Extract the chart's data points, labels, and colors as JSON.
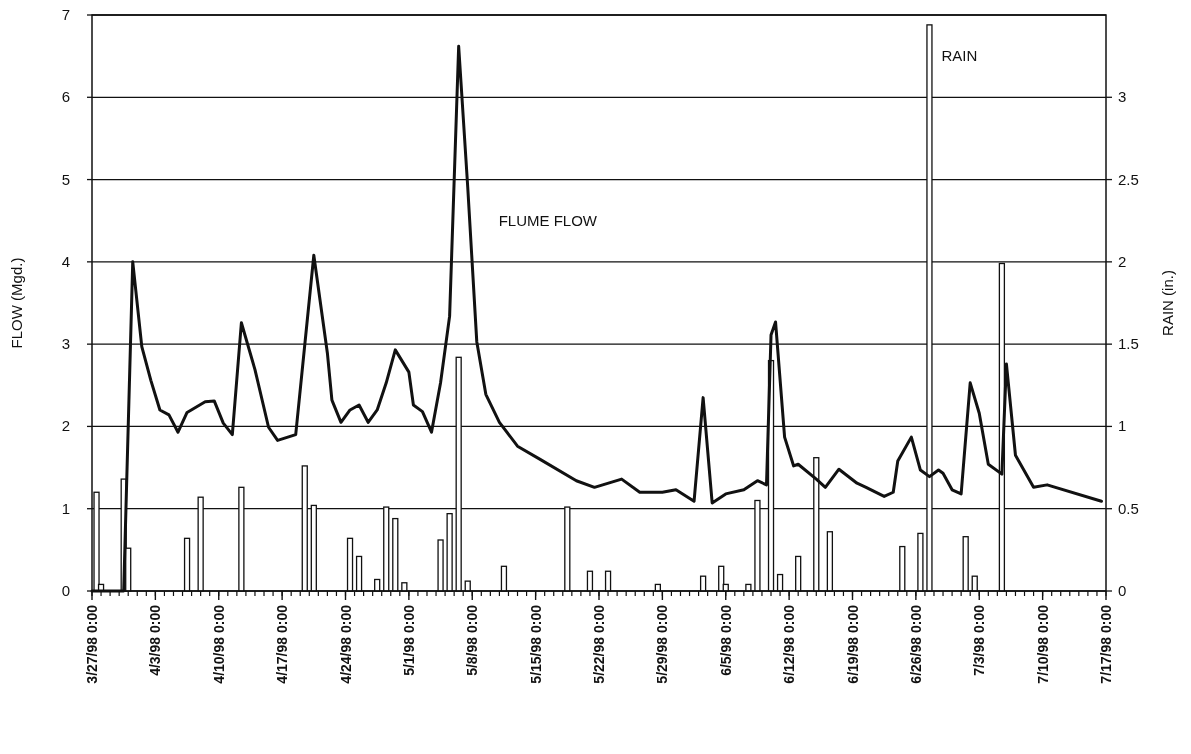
{
  "chart_data": {
    "type": "line",
    "ylabel": "FLOW (Mgd.)",
    "y2label": "RAIN (in.)",
    "xlim": [
      "1998-03-27",
      "1998-07-17"
    ],
    "xticks": [
      {
        "value": "1998-03-27",
        "label": "3/27/98 0:00"
      },
      {
        "value": "1998-04-03",
        "label": "4/3/98 0:00"
      },
      {
        "value": "1998-04-10",
        "label": "4/10/98 0:00"
      },
      {
        "value": "1998-04-17",
        "label": "4/17/98 0:00"
      },
      {
        "value": "1998-04-24",
        "label": "4/24/98 0:00"
      },
      {
        "value": "1998-05-01",
        "label": "5/1/98 0:00"
      },
      {
        "value": "1998-05-08",
        "label": "5/8/98 0:00"
      },
      {
        "value": "1998-05-15",
        "label": "5/15/98 0:00"
      },
      {
        "value": "1998-05-22",
        "label": "5/22/98 0:00"
      },
      {
        "value": "1998-05-29",
        "label": "5/29/98 0:00"
      },
      {
        "value": "1998-06-05",
        "label": "6/5/98 0:00"
      },
      {
        "value": "1998-06-12",
        "label": "6/12/98 0:00"
      },
      {
        "value": "1998-06-19",
        "label": "6/19/98 0:00"
      },
      {
        "value": "1998-06-26",
        "label": "6/26/98 0:00"
      },
      {
        "value": "1998-07-03",
        "label": "7/3/98 0:00"
      },
      {
        "value": "1998-07-10",
        "label": "7/10/98 0:00"
      },
      {
        "value": "1998-07-17",
        "label": "7/17/98 0:00"
      }
    ],
    "ylim": [
      0,
      7
    ],
    "yticks": [
      0,
      1,
      2,
      3,
      4,
      5,
      6,
      7
    ],
    "y2lim": [
      0,
      3.5
    ],
    "y2ticks": [
      0,
      0.5,
      1,
      1.5,
      2,
      2.5,
      3
    ],
    "grid": "y",
    "series": [
      {
        "name": "RAIN",
        "type": "bar",
        "axis": "y2",
        "color": "#ffffff",
        "x": [
          "1998-03-27T12:00",
          "1998-03-28T00:00",
          "1998-03-30T12:00",
          "1998-03-31T00:00",
          "1998-04-06T12:00",
          "1998-04-08T00:00",
          "1998-04-12T12:00",
          "1998-04-19T12:00",
          "1998-04-20T12:00",
          "1998-04-24T12:00",
          "1998-04-25T12:00",
          "1998-04-27T12:00",
          "1998-04-28T12:00",
          "1998-04-29T12:00",
          "1998-04-30T12:00",
          "1998-05-04T12:00",
          "1998-05-05T12:00",
          "1998-05-06T12:00",
          "1998-05-07T12:00",
          "1998-05-11T12:00",
          "1998-05-18T12:00",
          "1998-05-21T00:00",
          "1998-05-23T00:00",
          "1998-05-28T12:00",
          "1998-06-02T12:00",
          "1998-06-04T12:00",
          "1998-06-05T00:00",
          "1998-06-07T12:00",
          "1998-06-08T12:00",
          "1998-06-10T00:00",
          "1998-06-11T00:00",
          "1998-06-13T00:00",
          "1998-06-15T00:00",
          "1998-06-16T12:00",
          "1998-06-24T12:00",
          "1998-06-26T12:00",
          "1998-06-27T12:00",
          "1998-07-01T12:00",
          "1998-07-02T12:00",
          "1998-07-05T12:00"
        ],
        "values": [
          0.6,
          0.04,
          0.68,
          0.26,
          0.32,
          0.57,
          0.63,
          0.76,
          0.52,
          0.32,
          0.21,
          0.07,
          0.51,
          0.44,
          0.05,
          0.31,
          0.47,
          1.42,
          0.06,
          0.15,
          0.51,
          0.12,
          0.12,
          0.04,
          0.09,
          0.15,
          0.04,
          0.04,
          0.55,
          1.4,
          0.1,
          0.21,
          0.81,
          0.36,
          0.27,
          0.35,
          3.44,
          0.33,
          0.09,
          1.99
        ]
      },
      {
        "name": "FLUME FLOW",
        "color": "#111111",
        "x": [
          "1998-03-27T00:00",
          "1998-03-30T12:00",
          "1998-03-31T12:00",
          "1998-04-01T12:00",
          "1998-04-02T12:00",
          "1998-04-03T12:00",
          "1998-04-04T12:00",
          "1998-04-05T12:00",
          "1998-04-06T12:00",
          "1998-04-08T12:00",
          "1998-04-09T12:00",
          "1998-04-10T12:00",
          "1998-04-11T12:00",
          "1998-04-12T12:00",
          "1998-04-14T00:00",
          "1998-04-15T12:00",
          "1998-04-16T12:00",
          "1998-04-18T12:00",
          "1998-04-20T12:00",
          "1998-04-22T00:00",
          "1998-04-22T12:00",
          "1998-04-23T12:00",
          "1998-04-24T12:00",
          "1998-04-25T12:00",
          "1998-04-26T12:00",
          "1998-04-27T12:00",
          "1998-04-28T12:00",
          "1998-04-29T12:00",
          "1998-05-01T00:00",
          "1998-05-01T12:00",
          "1998-05-02T12:00",
          "1998-05-03T12:00",
          "1998-05-04T12:00",
          "1998-05-05T12:00",
          "1998-05-06T12:00",
          "1998-05-07T12:00",
          "1998-05-08T12:00",
          "1998-05-09T12:00",
          "1998-05-11T00:00",
          "1998-05-13T00:00",
          "1998-05-15T12:00",
          "1998-05-19T12:00",
          "1998-05-21T12:00",
          "1998-05-24T12:00",
          "1998-05-26T12:00",
          "1998-05-29T00:00",
          "1998-05-30T12:00",
          "1998-06-01T12:00",
          "1998-06-02T12:00",
          "1998-06-03T12:00",
          "1998-06-05T00:00",
          "1998-06-07T00:00",
          "1998-06-08T12:00",
          "1998-06-09T12:00",
          "1998-06-10T00:00",
          "1998-06-10T12:00",
          "1998-06-11T12:00",
          "1998-06-12T12:00",
          "1998-06-13T00:00",
          "1998-06-15T00:00",
          "1998-06-16T00:00",
          "1998-06-17T12:00",
          "1998-06-19T12:00",
          "1998-06-20T12:00",
          "1998-06-22T12:00",
          "1998-06-23T12:00",
          "1998-06-24T00:00",
          "1998-06-25T12:00",
          "1998-06-26T12:00",
          "1998-06-27T12:00",
          "1998-06-28T12:00",
          "1998-06-29T00:00",
          "1998-06-30T00:00",
          "1998-07-01T00:00",
          "1998-07-02T00:00",
          "1998-07-03T00:00",
          "1998-07-04T00:00",
          "1998-07-05T12:00",
          "1998-07-06T00:00",
          "1998-07-07T00:00",
          "1998-07-09T00:00",
          "1998-07-10T12:00",
          "1998-07-16T12:00"
        ],
        "values": [
          0,
          0,
          4.0,
          2.97,
          2.56,
          2.2,
          2.14,
          1.93,
          2.17,
          2.3,
          2.31,
          2.04,
          1.9,
          3.26,
          2.69,
          1.99,
          1.83,
          1.9,
          4.08,
          2.89,
          2.32,
          2.05,
          2.2,
          2.26,
          2.05,
          2.2,
          2.53,
          2.93,
          2.66,
          2.26,
          2.18,
          1.93,
          2.53,
          3.34,
          6.62,
          4.91,
          3.03,
          2.39,
          2.05,
          1.76,
          1.6,
          1.34,
          1.26,
          1.36,
          1.2,
          1.2,
          1.23,
          1.09,
          2.35,
          1.07,
          1.18,
          1.23,
          1.34,
          1.29,
          3.11,
          3.27,
          1.87,
          1.52,
          1.54,
          1.36,
          1.26,
          1.48,
          1.31,
          1.26,
          1.15,
          1.2,
          1.58,
          1.87,
          1.47,
          1.39,
          1.47,
          1.43,
          1.23,
          1.18,
          2.53,
          2.16,
          1.54,
          1.42,
          2.76,
          1.65,
          1.26,
          1.29,
          1.09
        ]
      }
    ]
  }
}
